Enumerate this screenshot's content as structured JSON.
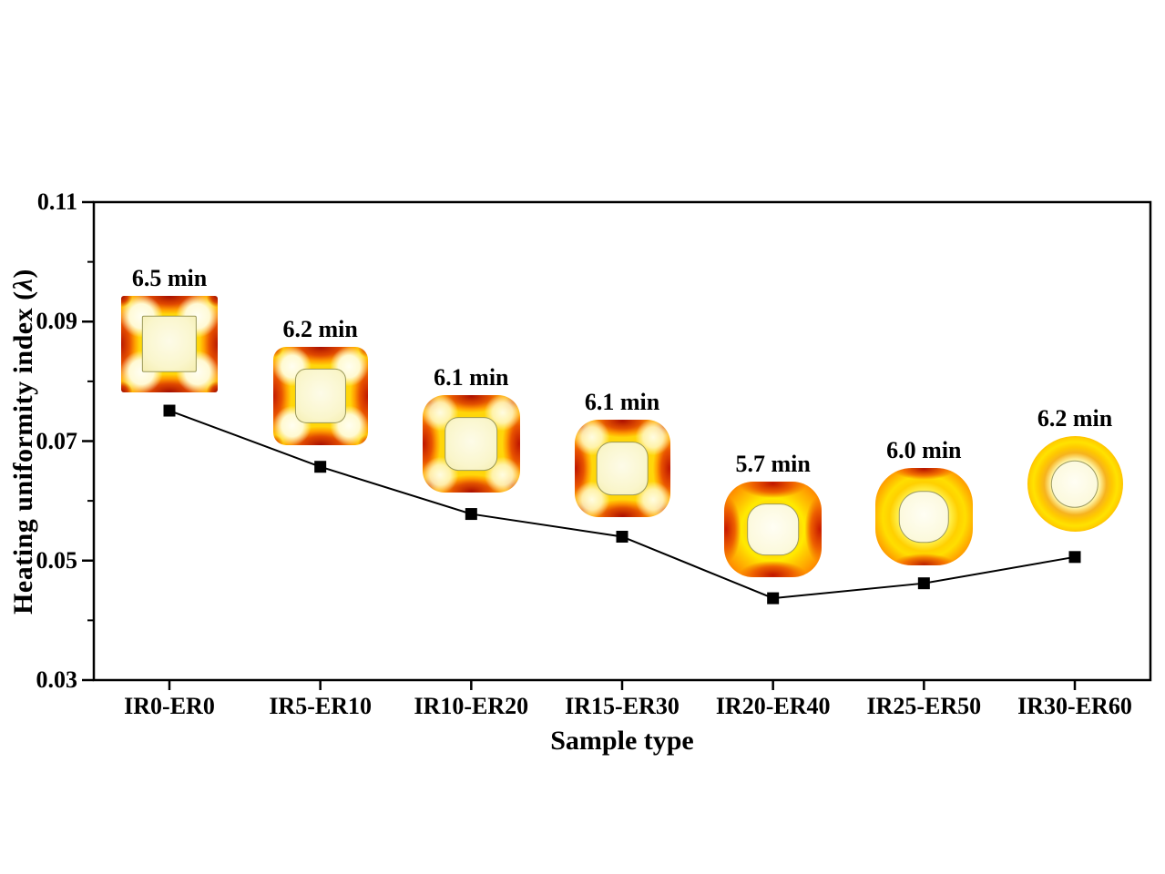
{
  "figure": {
    "y_axis_title_prefix": "Heating uniformity index (",
    "y_axis_title_symbol": "λ",
    "y_axis_title_suffix": ")",
    "x_axis_title": "Sample type"
  },
  "chart_data": {
    "type": "line",
    "title": "",
    "xlabel": "Sample type",
    "ylabel": "Heating uniformity index (λ)",
    "categories": [
      "IR0-ER0",
      "IR5-ER10",
      "IR10-ER20",
      "IR15-ER30",
      "IR20-ER40",
      "IR25-ER50",
      "IR30-ER60"
    ],
    "series": [
      {
        "name": "Heating uniformity index",
        "marker": "filled-square",
        "color": "#000000",
        "values": [
          0.0751,
          0.0657,
          0.0578,
          0.054,
          0.0437,
          0.0462,
          0.0506
        ]
      }
    ],
    "ylim": [
      0.03,
      0.11
    ],
    "yticks_major": [
      0.03,
      0.05,
      0.07,
      0.09,
      0.11
    ],
    "ytick_labels": [
      "0.03",
      "0.05",
      "0.07",
      "0.09",
      "0.11"
    ],
    "yticks_minor": [
      0.04,
      0.06,
      0.08,
      0.1
    ],
    "grid": false,
    "legend": "none",
    "insets": [
      {
        "category": "IR0-ER0",
        "time_label": "6.5 min",
        "shape": "sharp square, dark-red edge centers and corner tips, bright pale corner spots, pale inner square sample"
      },
      {
        "category": "IR5-ER10",
        "time_label": "6.2 min",
        "shape": "slightly rounded square, red edge centers, bright corner spots, pale inner rounded-square sample"
      },
      {
        "category": "IR10-ER20",
        "time_label": "6.1 min",
        "shape": "rounded square, red edge centers and corner smudges, pale inner rounded-square sample"
      },
      {
        "category": "IR15-ER30",
        "time_label": "6.1 min",
        "shape": "rounded square, red edge centers, pale inner rounded-square sample"
      },
      {
        "category": "IR20-ER40",
        "time_label": "5.7 min",
        "shape": "very rounded square, orange ring with red edge centers, pale inner rounded-square sample"
      },
      {
        "category": "IR25-ER50",
        "time_label": "6.0 min",
        "shape": "squircle, concentric yellow-orange rings with red rim, pale inner sample"
      },
      {
        "category": "IR30-ER60",
        "time_label": "6.2 min",
        "shape": "circle, concentric rings: dark-red rim, orange, bright yellow, orange, near-white center sample"
      }
    ]
  },
  "palette": {
    "line": "#000000",
    "marker": "#000000",
    "axis": "#000000",
    "text": "#000000",
    "background": "#FFFFFF",
    "heatmap_hot": "#A00000",
    "heatmap_red_orange": "#E04800",
    "heatmap_orange": "#FF9400",
    "heatmap_yellow": "#FFD60A",
    "heatmap_pale_spot": "#FFFEF0",
    "sample_fill": "#FAF6CC"
  }
}
